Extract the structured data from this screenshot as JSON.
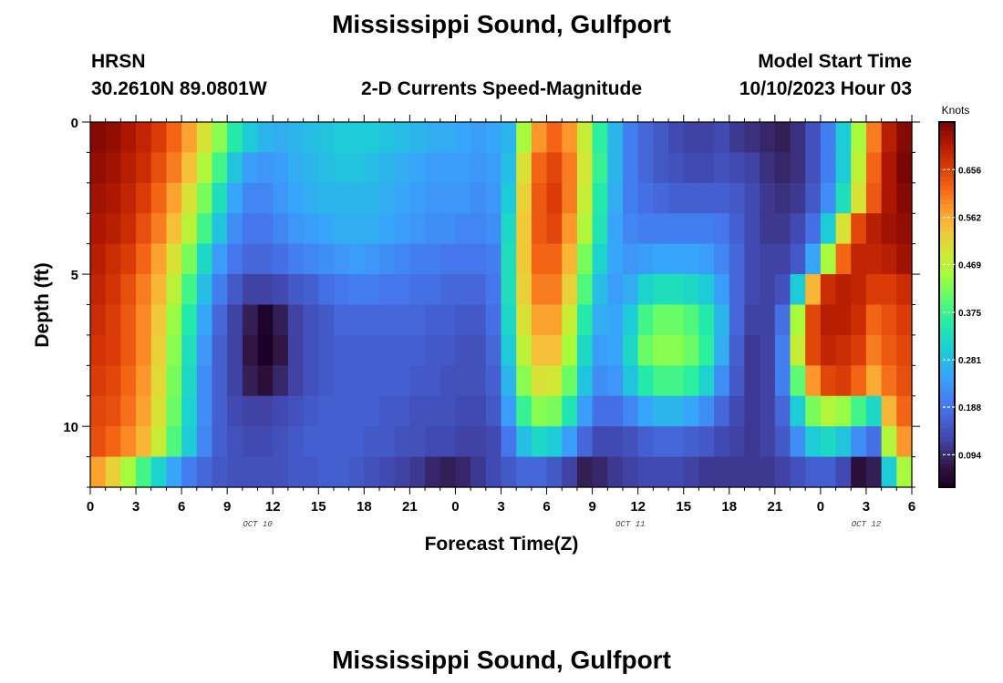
{
  "header": {
    "title": "Mississippi Sound, Gulfport",
    "station_code": "HRSN",
    "station_coords": "30.2610N  89.0801W",
    "subtitle": "2-D Currents Speed-Magnitude",
    "model_start_label": "Model Start Time",
    "model_start_value": "10/10/2023 Hour 03"
  },
  "footer": {
    "title": "Mississippi Sound, Gulfport"
  },
  "chart_data": {
    "type": "heatmap",
    "title": "2-D Currents Speed-Magnitude",
    "xlabel": "Forecast Time(Z)",
    "ylabel": "Depth (ft)",
    "x_tick_labels": [
      "0",
      "3",
      "6",
      "9",
      "12",
      "15",
      "18",
      "21",
      "0",
      "3",
      "6",
      "9",
      "12",
      "15",
      "18",
      "21",
      "0",
      "3",
      "6"
    ],
    "x_date_labels": [
      {
        "label": "OCT 10",
        "hour": 11
      },
      {
        "label": "OCT 11",
        "hour": 35.5
      },
      {
        "label": "OCT 12",
        "hour": 51
      }
    ],
    "y_tick_labels": [
      "0",
      "5",
      "10"
    ],
    "xlim": [
      0,
      54
    ],
    "ylim": [
      0,
      12
    ],
    "colorbar": {
      "unit": "Knots",
      "ticks": [
        "0.656",
        "0.562",
        "0.469",
        "0.375",
        "0.281",
        "0.188",
        "0.094"
      ],
      "tick_values": [
        0.656,
        0.562,
        0.469,
        0.375,
        0.281,
        0.188,
        0.094
      ],
      "range": [
        0.03,
        0.75
      ]
    },
    "grid": {
      "rows": 12,
      "row_depths_ft": [
        0.5,
        1.5,
        2.5,
        3.5,
        4.5,
        5.5,
        6.5,
        7.5,
        8.5,
        9.5,
        10.5,
        11.5
      ],
      "columns": 54,
      "values_by_row": [
        [
          0.74,
          0.73,
          0.71,
          0.69,
          0.66,
          0.62,
          0.57,
          0.5,
          0.43,
          0.35,
          0.3,
          0.27,
          0.26,
          0.27,
          0.28,
          0.29,
          0.3,
          0.3,
          0.3,
          0.29,
          0.28,
          0.27,
          0.26,
          0.26,
          0.25,
          0.24,
          0.25,
          0.27,
          0.45,
          0.58,
          0.62,
          0.58,
          0.48,
          0.36,
          0.27,
          0.2,
          0.17,
          0.15,
          0.13,
          0.12,
          0.12,
          0.13,
          0.11,
          0.1,
          0.09,
          0.08,
          0.1,
          0.14,
          0.2,
          0.3,
          0.45,
          0.6,
          0.7,
          0.74
        ],
        [
          0.73,
          0.72,
          0.7,
          0.68,
          0.64,
          0.6,
          0.54,
          0.46,
          0.38,
          0.29,
          0.24,
          0.23,
          0.24,
          0.26,
          0.27,
          0.28,
          0.29,
          0.29,
          0.28,
          0.27,
          0.26,
          0.25,
          0.24,
          0.24,
          0.24,
          0.23,
          0.24,
          0.28,
          0.5,
          0.62,
          0.65,
          0.6,
          0.49,
          0.37,
          0.27,
          0.2,
          0.17,
          0.15,
          0.14,
          0.13,
          0.13,
          0.14,
          0.13,
          0.12,
          0.1,
          0.09,
          0.1,
          0.14,
          0.2,
          0.3,
          0.47,
          0.62,
          0.71,
          0.75
        ],
        [
          0.72,
          0.71,
          0.69,
          0.66,
          0.62,
          0.57,
          0.5,
          0.42,
          0.33,
          0.25,
          0.21,
          0.21,
          0.23,
          0.25,
          0.26,
          0.27,
          0.27,
          0.27,
          0.27,
          0.26,
          0.25,
          0.24,
          0.23,
          0.23,
          0.23,
          0.22,
          0.23,
          0.3,
          0.52,
          0.63,
          0.66,
          0.6,
          0.48,
          0.35,
          0.26,
          0.2,
          0.18,
          0.17,
          0.16,
          0.16,
          0.16,
          0.16,
          0.15,
          0.13,
          0.11,
          0.1,
          0.11,
          0.15,
          0.22,
          0.33,
          0.5,
          0.63,
          0.71,
          0.74
        ],
        [
          0.71,
          0.7,
          0.68,
          0.64,
          0.6,
          0.54,
          0.47,
          0.38,
          0.29,
          0.22,
          0.19,
          0.19,
          0.21,
          0.23,
          0.24,
          0.25,
          0.26,
          0.26,
          0.26,
          0.25,
          0.24,
          0.23,
          0.22,
          0.22,
          0.21,
          0.21,
          0.22,
          0.32,
          0.53,
          0.63,
          0.65,
          0.58,
          0.46,
          0.34,
          0.25,
          0.21,
          0.2,
          0.2,
          0.2,
          0.2,
          0.2,
          0.19,
          0.16,
          0.13,
          0.11,
          0.11,
          0.13,
          0.18,
          0.3,
          0.5,
          0.65,
          0.7,
          0.72,
          0.73
        ],
        [
          0.7,
          0.68,
          0.66,
          0.62,
          0.57,
          0.5,
          0.42,
          0.32,
          0.24,
          0.19,
          0.17,
          0.17,
          0.18,
          0.2,
          0.21,
          0.22,
          0.23,
          0.24,
          0.23,
          0.22,
          0.21,
          0.2,
          0.2,
          0.19,
          0.19,
          0.19,
          0.2,
          0.33,
          0.53,
          0.62,
          0.62,
          0.55,
          0.42,
          0.31,
          0.25,
          0.23,
          0.24,
          0.25,
          0.25,
          0.25,
          0.24,
          0.21,
          0.17,
          0.13,
          0.12,
          0.12,
          0.15,
          0.25,
          0.45,
          0.62,
          0.69,
          0.69,
          0.7,
          0.72
        ],
        [
          0.69,
          0.67,
          0.64,
          0.6,
          0.55,
          0.47,
          0.38,
          0.28,
          0.2,
          0.15,
          0.12,
          0.12,
          0.13,
          0.15,
          0.16,
          0.18,
          0.19,
          0.2,
          0.2,
          0.19,
          0.19,
          0.18,
          0.18,
          0.17,
          0.17,
          0.17,
          0.19,
          0.33,
          0.52,
          0.6,
          0.6,
          0.52,
          0.39,
          0.28,
          0.24,
          0.26,
          0.31,
          0.33,
          0.33,
          0.32,
          0.3,
          0.24,
          0.17,
          0.13,
          0.12,
          0.14,
          0.3,
          0.55,
          0.68,
          0.7,
          0.69,
          0.66,
          0.66,
          0.68
        ],
        [
          0.68,
          0.66,
          0.63,
          0.59,
          0.53,
          0.44,
          0.35,
          0.25,
          0.17,
          0.12,
          0.08,
          0.04,
          0.08,
          0.12,
          0.14,
          0.15,
          0.17,
          0.17,
          0.17,
          0.17,
          0.17,
          0.17,
          0.16,
          0.16,
          0.15,
          0.15,
          0.18,
          0.32,
          0.5,
          0.57,
          0.57,
          0.48,
          0.35,
          0.26,
          0.25,
          0.3,
          0.38,
          0.41,
          0.41,
          0.39,
          0.35,
          0.27,
          0.17,
          0.12,
          0.12,
          0.18,
          0.45,
          0.65,
          0.7,
          0.7,
          0.68,
          0.62,
          0.64,
          0.66
        ],
        [
          0.67,
          0.66,
          0.63,
          0.59,
          0.52,
          0.43,
          0.33,
          0.23,
          0.16,
          0.12,
          0.07,
          0.01,
          0.07,
          0.12,
          0.14,
          0.15,
          0.16,
          0.16,
          0.16,
          0.16,
          0.16,
          0.16,
          0.15,
          0.15,
          0.14,
          0.14,
          0.17,
          0.3,
          0.47,
          0.54,
          0.54,
          0.45,
          0.32,
          0.24,
          0.25,
          0.32,
          0.41,
          0.43,
          0.43,
          0.41,
          0.36,
          0.26,
          0.16,
          0.11,
          0.12,
          0.2,
          0.48,
          0.65,
          0.69,
          0.68,
          0.66,
          0.6,
          0.63,
          0.65
        ],
        [
          0.66,
          0.65,
          0.62,
          0.58,
          0.51,
          0.42,
          0.32,
          0.22,
          0.16,
          0.12,
          0.08,
          0.06,
          0.09,
          0.12,
          0.14,
          0.15,
          0.16,
          0.16,
          0.16,
          0.16,
          0.16,
          0.15,
          0.15,
          0.14,
          0.14,
          0.14,
          0.16,
          0.27,
          0.43,
          0.5,
          0.49,
          0.41,
          0.29,
          0.22,
          0.23,
          0.29,
          0.35,
          0.38,
          0.38,
          0.36,
          0.31,
          0.22,
          0.15,
          0.11,
          0.12,
          0.2,
          0.4,
          0.58,
          0.65,
          0.66,
          0.62,
          0.56,
          0.61,
          0.64
        ],
        [
          0.65,
          0.64,
          0.61,
          0.57,
          0.5,
          0.41,
          0.31,
          0.22,
          0.16,
          0.13,
          0.12,
          0.12,
          0.13,
          0.14,
          0.15,
          0.16,
          0.16,
          0.16,
          0.16,
          0.15,
          0.15,
          0.14,
          0.14,
          0.14,
          0.13,
          0.13,
          0.15,
          0.24,
          0.37,
          0.43,
          0.42,
          0.34,
          0.24,
          0.18,
          0.18,
          0.21,
          0.25,
          0.27,
          0.27,
          0.25,
          0.22,
          0.17,
          0.13,
          0.11,
          0.12,
          0.17,
          0.3,
          0.42,
          0.46,
          0.44,
          0.38,
          0.32,
          0.55,
          0.62
        ],
        [
          0.64,
          0.62,
          0.59,
          0.55,
          0.48,
          0.39,
          0.3,
          0.21,
          0.16,
          0.14,
          0.13,
          0.13,
          0.14,
          0.15,
          0.16,
          0.16,
          0.16,
          0.16,
          0.15,
          0.15,
          0.14,
          0.14,
          0.13,
          0.13,
          0.12,
          0.12,
          0.13,
          0.19,
          0.28,
          0.32,
          0.3,
          0.24,
          0.17,
          0.13,
          0.13,
          0.14,
          0.16,
          0.17,
          0.17,
          0.16,
          0.15,
          0.13,
          0.12,
          0.11,
          0.12,
          0.15,
          0.22,
          0.3,
          0.32,
          0.29,
          0.22,
          0.18,
          0.46,
          0.58
        ],
        [
          0.57,
          0.52,
          0.45,
          0.38,
          0.31,
          0.25,
          0.2,
          0.17,
          0.15,
          0.14,
          0.14,
          0.14,
          0.14,
          0.15,
          0.15,
          0.16,
          0.16,
          0.15,
          0.14,
          0.13,
          0.12,
          0.11,
          0.09,
          0.08,
          0.09,
          0.11,
          0.13,
          0.15,
          0.17,
          0.17,
          0.15,
          0.12,
          0.08,
          0.09,
          0.11,
          0.12,
          0.13,
          0.13,
          0.13,
          0.12,
          0.11,
          0.11,
          0.11,
          0.11,
          0.11,
          0.12,
          0.14,
          0.16,
          0.16,
          0.13,
          0.06,
          0.08,
          0.3,
          0.45
        ]
      ]
    }
  }
}
